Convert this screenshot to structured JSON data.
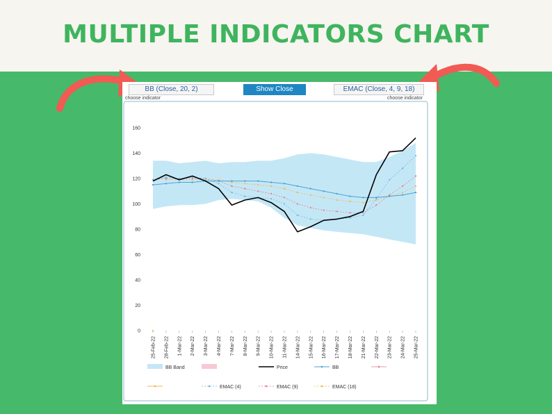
{
  "banner": {
    "title": "MULTIPLE INDICATORS CHART"
  },
  "controls": {
    "bb_button": "BB (Close, 20, 2)",
    "show_button": "Show Close",
    "emac_button": "EMAC (Close, 4, 9, 18)",
    "choose_left": "choose indicator",
    "choose_right": "choose indicator"
  },
  "colors": {
    "banner_bg": "#f6f5f0",
    "title": "#3fb45e",
    "background": "#47b96a",
    "arrow": "#f25a54",
    "bb_band": "#c4e7f6",
    "price": "#000000",
    "bb": "#4aa3d2",
    "emac4": "#6ab8e0",
    "emac9": "#e57a8a",
    "emac18": "#f0b84c"
  },
  "chart_data": {
    "type": "line",
    "ylim": [
      0,
      160
    ],
    "yticks": [
      "0",
      "20",
      "40",
      "60",
      "80",
      "100",
      "120",
      "140",
      "160"
    ],
    "categories": [
      "25-Feb-22",
      "28-Feb-22",
      "1-Mar-22",
      "2-Mar-22",
      "3-Mar-22",
      "4-Mar-22",
      "7-Mar-22",
      "8-Mar-22",
      "9-Mar-22",
      "10-Mar-22",
      "11-Mar-22",
      "14-Mar-22",
      "15-Mar-22",
      "16-Mar-22",
      "17-Mar-22",
      "18-Mar-22",
      "21-Mar-22",
      "22-Mar-22",
      "23-Mar-22",
      "24-Mar-22",
      "25-Mar-22"
    ],
    "bb_band": {
      "name": "BB Band",
      "upper": [
        134,
        134,
        132,
        133,
        134,
        132,
        133,
        133,
        134,
        134,
        136,
        139,
        140,
        139,
        137,
        135,
        133,
        133,
        137,
        142,
        148
      ],
      "lower": [
        96,
        98,
        99,
        99,
        100,
        103,
        104,
        103,
        102,
        97,
        89,
        83,
        81,
        79,
        78,
        77,
        76,
        74,
        72,
        70,
        68
      ]
    },
    "series": [
      {
        "name": "Price",
        "values": [
          118,
          123,
          119,
          122,
          118,
          112,
          99,
          103,
          105,
          101,
          94,
          78,
          82,
          87,
          88,
          90,
          94,
          123,
          141,
          142,
          152
        ]
      },
      {
        "name": "BB",
        "values": [
          115,
          116,
          117,
          117,
          118,
          118,
          118,
          118,
          118,
          117,
          116,
          114,
          112,
          110,
          108,
          106,
          105,
          105,
          106,
          107,
          109
        ]
      },
      {
        "name": "EMAC (4)",
        "values": [
          119,
          121,
          120,
          121,
          120,
          116,
          109,
          106,
          105,
          104,
          100,
          91,
          88,
          87,
          88,
          89,
          91,
          104,
          119,
          128,
          138
        ]
      },
      {
        "name": "EMAC (9)",
        "values": [
          119,
          120,
          120,
          120,
          120,
          118,
          114,
          112,
          110,
          108,
          105,
          100,
          97,
          95,
          94,
          93,
          93,
          99,
          107,
          114,
          122
        ]
      },
      {
        "name": "EMAC (18)",
        "values": [
          0,
          119,
          119,
          119,
          119,
          119,
          117,
          116,
          115,
          114,
          112,
          109,
          107,
          105,
          103,
          102,
          101,
          103,
          106,
          109,
          114
        ]
      }
    ],
    "legend": {
      "position": "bottom",
      "items": [
        "BB Band",
        "",
        "Price",
        "BB",
        "",
        "",
        "EMAC (4)",
        "EMAC (9)",
        "EMAC (18)"
      ]
    }
  }
}
